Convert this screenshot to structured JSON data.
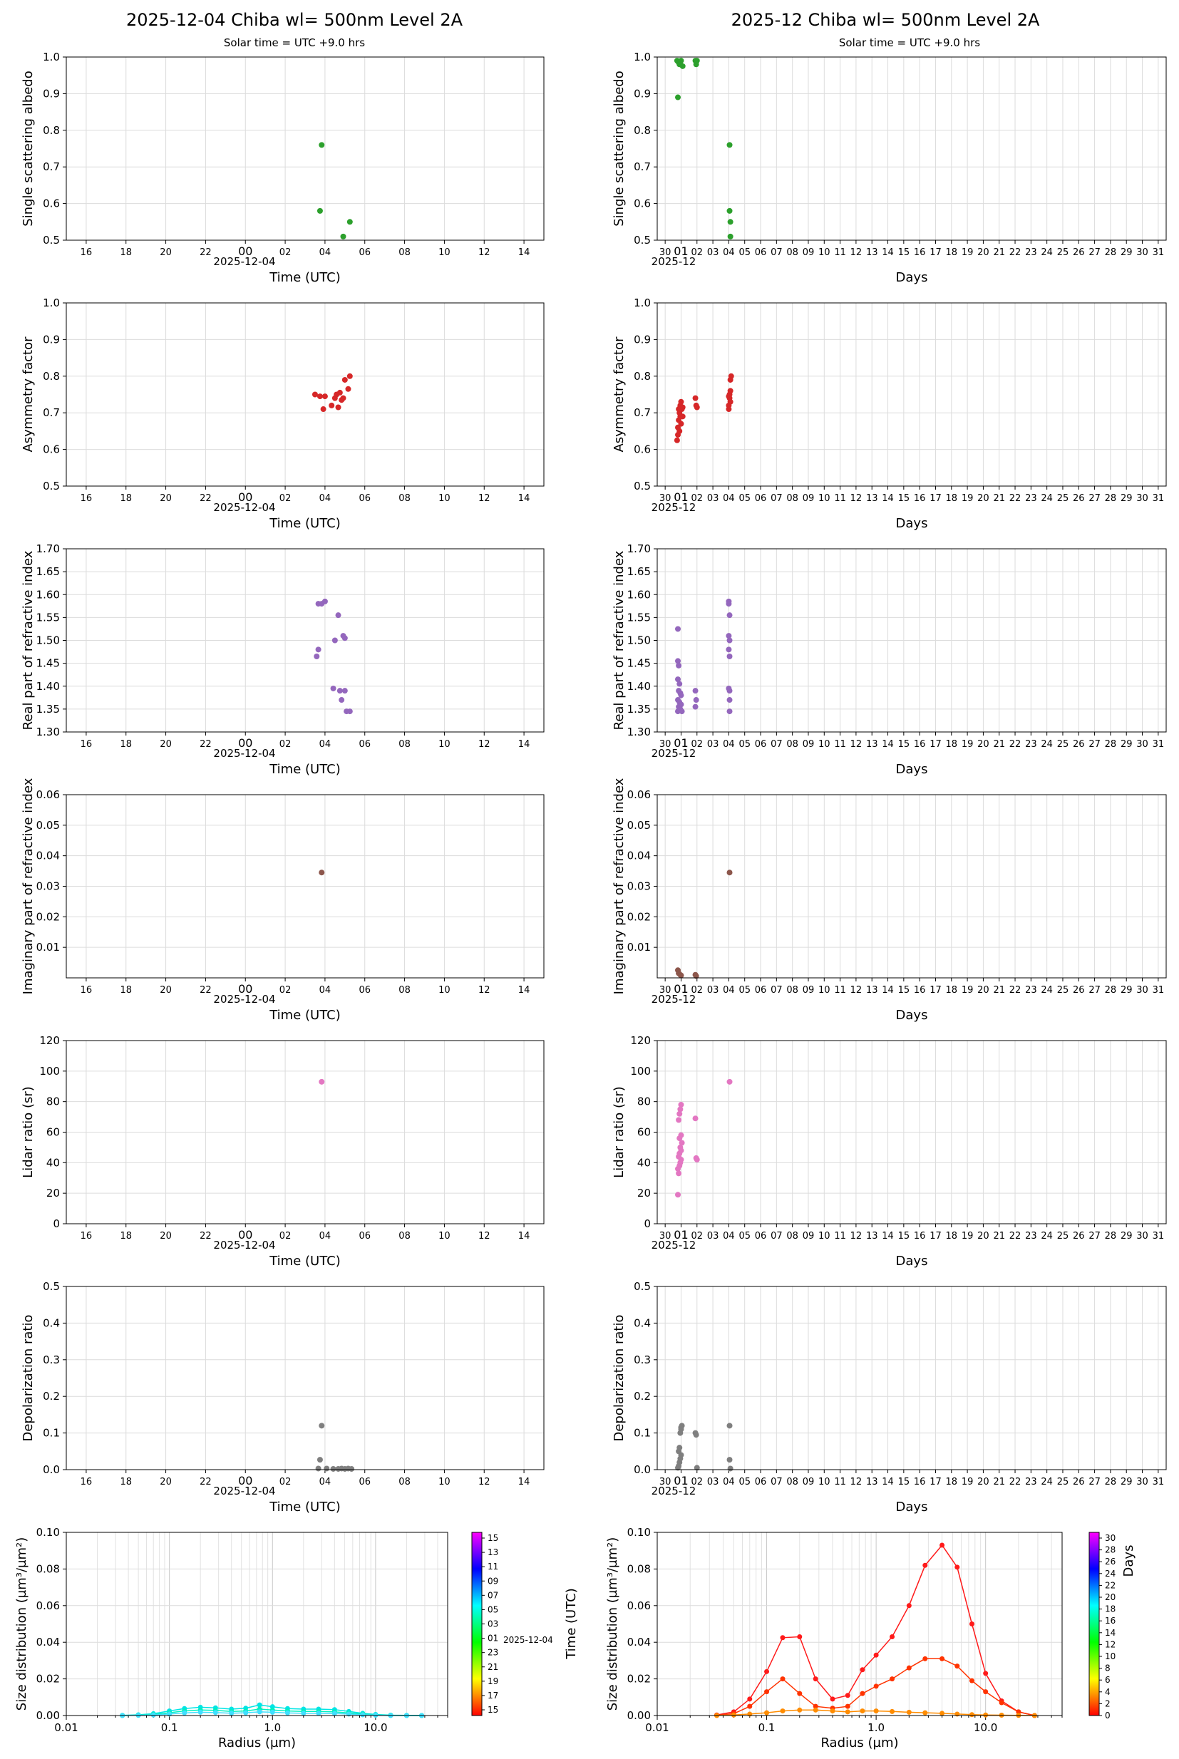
{
  "titles": {
    "left": "2025-12-04  Chiba  wl= 500nm  Level 2A",
    "right": "2025-12  Chiba  wl= 500nm  Level 2A",
    "left_sub": "Solar time = UTC +9.0 hrs",
    "right_sub": "Solar time = UTC +9.0 hrs"
  },
  "axes": {
    "time_xlabel": "Time (UTC)",
    "days_xlabel": "Days",
    "date_label": "2025-12-04",
    "month_label": "2025-12",
    "time_ticks": [
      "16",
      "18",
      "20",
      "22",
      "00",
      "02",
      "04",
      "06",
      "08",
      "10",
      "12",
      "14"
    ],
    "day_ticks": [
      "30",
      "01",
      "02",
      "03",
      "04",
      "05",
      "06",
      "07",
      "08",
      "09",
      "10",
      "11",
      "12",
      "13",
      "14",
      "15",
      "16",
      "17",
      "18",
      "19",
      "20",
      "21",
      "22",
      "23",
      "24",
      "25",
      "26",
      "27",
      "28",
      "29",
      "30",
      "31"
    ],
    "radius_xlabel": "Radius (µm)",
    "radius_ticks": [
      "0.01",
      "0.1",
      "1.0",
      "10.0"
    ],
    "sd_ylabel": "Size distribution (µm³/µm²)",
    "sd_yticks": [
      "0.00",
      "0.02",
      "0.04",
      "0.06",
      "0.08",
      "0.10"
    ],
    "cb_left_label": "Time (UTC)",
    "cb_left_ticks": [
      "15",
      "13",
      "11",
      "09",
      "07",
      "05",
      "03",
      "01",
      "23",
      "21",
      "19",
      "17",
      "15"
    ],
    "cb_left_date": "2025-12-04",
    "cb_right_label": "Days",
    "cb_right_ticks": [
      "30",
      "28",
      "26",
      "24",
      "22",
      "20",
      "18",
      "16",
      "14",
      "12",
      "10",
      "8",
      "6",
      "4",
      "2",
      "0"
    ]
  },
  "chart_data": [
    {
      "id": "ssa",
      "type": "scatter",
      "ylabel": "Single scattering albedo",
      "ylim": [
        0.5,
        1.0
      ],
      "yticks": [
        "0.5",
        "0.6",
        "0.7",
        "0.8",
        "0.9",
        "1.0"
      ],
      "color": "#2ca02c",
      "day_points": [
        [
          "03:50",
          0.76
        ],
        [
          "03:45",
          0.58
        ],
        [
          "05:15",
          0.55
        ],
        [
          "04:55",
          0.51
        ]
      ],
      "month_points": [
        [
          0.75,
          0.99
        ],
        [
          0.85,
          0.985
        ],
        [
          0.9,
          0.98
        ],
        [
          0.95,
          0.98
        ],
        [
          1.0,
          0.99
        ],
        [
          1.1,
          0.975
        ],
        [
          0.8,
          0.89
        ],
        [
          1.9,
          0.99
        ],
        [
          1.95,
          0.98
        ],
        [
          2.0,
          0.99
        ],
        [
          4.05,
          0.76
        ],
        [
          4.05,
          0.58
        ],
        [
          4.1,
          0.55
        ],
        [
          4.1,
          0.51
        ]
      ]
    },
    {
      "id": "asym",
      "type": "scatter",
      "ylabel": "Asymmetry factor",
      "ylim": [
        0.5,
        1.0
      ],
      "yticks": [
        "0.5",
        "0.6",
        "0.7",
        "0.8",
        "0.9",
        "1.0"
      ],
      "color": "#d62728",
      "day_points": [
        [
          "03:30",
          0.75
        ],
        [
          "03:45",
          0.745
        ],
        [
          "03:55",
          0.71
        ],
        [
          "04:00",
          0.745
        ],
        [
          "04:20",
          0.72
        ],
        [
          "04:30",
          0.74
        ],
        [
          "04:40",
          0.715
        ],
        [
          "04:45",
          0.755
        ],
        [
          "04:55",
          0.74
        ],
        [
          "05:00",
          0.79
        ],
        [
          "05:10",
          0.765
        ],
        [
          "05:15",
          0.8
        ],
        [
          "04:35",
          0.75
        ],
        [
          "04:50",
          0.735
        ]
      ],
      "month_points": [
        [
          0.75,
          0.625
        ],
        [
          0.8,
          0.66
        ],
        [
          0.85,
          0.68
        ],
        [
          0.9,
          0.7
        ],
        [
          0.95,
          0.72
        ],
        [
          1.0,
          0.73
        ],
        [
          1.05,
          0.71
        ],
        [
          1.1,
          0.69
        ],
        [
          0.8,
          0.64
        ],
        [
          0.9,
          0.65
        ],
        [
          1.0,
          0.67
        ],
        [
          1.1,
          0.715
        ],
        [
          0.95,
          0.69
        ],
        [
          0.85,
          0.71
        ],
        [
          1.9,
          0.74
        ],
        [
          1.95,
          0.72
        ],
        [
          2.0,
          0.715
        ],
        [
          4.0,
          0.71
        ],
        [
          4.0,
          0.72
        ],
        [
          4.05,
          0.74
        ],
        [
          4.05,
          0.75
        ],
        [
          4.1,
          0.76
        ],
        [
          4.1,
          0.79
        ],
        [
          4.15,
          0.8
        ],
        [
          4.0,
          0.745
        ],
        [
          4.1,
          0.73
        ]
      ]
    },
    {
      "id": "nr",
      "type": "scatter",
      "ylabel": "Real part of refractive index",
      "ylim": [
        1.3,
        1.7
      ],
      "yticks": [
        "1.30",
        "1.35",
        "1.40",
        "1.45",
        "1.50",
        "1.55",
        "1.60",
        "1.65",
        "1.70"
      ],
      "color": "#9467bd",
      "day_points": [
        [
          "03:40",
          1.58
        ],
        [
          "03:50",
          1.58
        ],
        [
          "04:00",
          1.585
        ],
        [
          "04:40",
          1.555
        ],
        [
          "04:30",
          1.5
        ],
        [
          "04:55",
          1.51
        ],
        [
          "05:00",
          1.505
        ],
        [
          "03:35",
          1.465
        ],
        [
          "03:40",
          1.48
        ],
        [
          "04:25",
          1.395
        ],
        [
          "04:45",
          1.39
        ],
        [
          "05:00",
          1.39
        ],
        [
          "04:50",
          1.37
        ],
        [
          "05:05",
          1.345
        ],
        [
          "05:15",
          1.345
        ]
      ],
      "month_points": [
        [
          0.8,
          1.525
        ],
        [
          0.8,
          1.455
        ],
        [
          0.85,
          1.445
        ],
        [
          0.8,
          1.415
        ],
        [
          0.9,
          1.405
        ],
        [
          0.85,
          1.39
        ],
        [
          0.95,
          1.385
        ],
        [
          1.0,
          1.38
        ],
        [
          0.8,
          1.37
        ],
        [
          0.9,
          1.365
        ],
        [
          1.0,
          1.36
        ],
        [
          0.85,
          1.355
        ],
        [
          0.95,
          1.35
        ],
        [
          1.05,
          1.345
        ],
        [
          0.8,
          1.345
        ],
        [
          1.9,
          1.39
        ],
        [
          1.95,
          1.37
        ],
        [
          1.9,
          1.355
        ],
        [
          4.0,
          1.585
        ],
        [
          4.0,
          1.58
        ],
        [
          4.05,
          1.555
        ],
        [
          4.0,
          1.51
        ],
        [
          4.05,
          1.5
        ],
        [
          4.0,
          1.48
        ],
        [
          4.05,
          1.465
        ],
        [
          4.0,
          1.395
        ],
        [
          4.05,
          1.39
        ],
        [
          4.05,
          1.37
        ],
        [
          4.05,
          1.345
        ]
      ]
    },
    {
      "id": "ni",
      "type": "scatter",
      "ylabel": "Imaginary part of refractive index",
      "ylim": [
        0.0,
        0.06
      ],
      "yticks": [
        "0.01",
        "0.02",
        "0.03",
        "0.04",
        "0.05",
        "0.06"
      ],
      "color": "#8c564b",
      "day_points": [
        [
          "03:50",
          0.0345
        ]
      ],
      "month_points": [
        [
          0.8,
          0.0025
        ],
        [
          0.85,
          0.0015
        ],
        [
          0.95,
          0.001
        ],
        [
          1.0,
          0.0008
        ],
        [
          1.9,
          0.001
        ],
        [
          1.95,
          0.0006
        ],
        [
          4.05,
          0.0345
        ]
      ]
    },
    {
      "id": "lr",
      "type": "scatter",
      "ylabel": "Lidar ratio (sr)",
      "ylim": [
        0,
        120
      ],
      "yticks": [
        "0",
        "20",
        "40",
        "60",
        "80",
        "100",
        "120"
      ],
      "color": "#e377c2",
      "day_points": [
        [
          "03:50",
          93
        ]
      ],
      "month_points": [
        [
          0.8,
          19
        ],
        [
          0.85,
          33
        ],
        [
          0.8,
          36
        ],
        [
          0.9,
          38
        ],
        [
          0.95,
          40
        ],
        [
          1.0,
          42
        ],
        [
          0.85,
          44
        ],
        [
          0.9,
          46
        ],
        [
          1.0,
          48
        ],
        [
          0.95,
          50
        ],
        [
          1.05,
          53
        ],
        [
          0.9,
          56
        ],
        [
          1.0,
          58
        ],
        [
          0.85,
          68
        ],
        [
          0.9,
          72
        ],
        [
          0.95,
          75
        ],
        [
          1.0,
          78
        ],
        [
          1.9,
          69
        ],
        [
          1.95,
          43
        ],
        [
          2.0,
          42
        ],
        [
          4.05,
          93
        ]
      ]
    },
    {
      "id": "dep",
      "type": "scatter",
      "ylabel": "Depolarization ratio",
      "ylim": [
        0.0,
        0.5
      ],
      "yticks": [
        "0.0",
        "0.1",
        "0.2",
        "0.3",
        "0.4",
        "0.5"
      ],
      "color": "#7f7f7f",
      "day_points": [
        [
          "03:50",
          0.12
        ],
        [
          "03:45",
          0.027
        ],
        [
          "03:40",
          0.003
        ],
        [
          "04:05",
          0.003
        ],
        [
          "04:25",
          0.002
        ],
        [
          "04:40",
          0.002
        ],
        [
          "04:50",
          0.003
        ],
        [
          "05:00",
          0.002
        ],
        [
          "05:10",
          0.003
        ],
        [
          "05:20",
          0.002
        ]
      ],
      "month_points": [
        [
          0.8,
          0.005
        ],
        [
          0.85,
          0.01
        ],
        [
          0.9,
          0.02
        ],
        [
          0.95,
          0.03
        ],
        [
          1.0,
          0.04
        ],
        [
          0.85,
          0.05
        ],
        [
          0.9,
          0.06
        ],
        [
          0.95,
          0.1
        ],
        [
          1.0,
          0.11
        ],
        [
          1.05,
          0.12
        ],
        [
          1.0,
          0.115
        ],
        [
          1.9,
          0.1
        ],
        [
          1.95,
          0.095
        ],
        [
          2.0,
          0.005
        ],
        [
          4.05,
          0.12
        ],
        [
          4.05,
          0.027
        ],
        [
          4.1,
          0.003
        ]
      ]
    },
    {
      "id": "sd_day",
      "type": "line",
      "xscale": "log",
      "x": [
        0.035,
        0.05,
        0.07,
        0.1,
        0.14,
        0.2,
        0.28,
        0.4,
        0.55,
        0.75,
        1.0,
        1.4,
        2.0,
        2.8,
        4.0,
        5.5,
        7.5,
        10,
        14,
        20,
        28
      ],
      "series": [
        {
          "values": [
            0.0001,
            0.0004,
            0.001,
            0.0025,
            0.0038,
            0.0045,
            0.0042,
            0.0035,
            0.004,
            0.0058,
            0.0048,
            0.0038,
            0.0035,
            0.0035,
            0.0032,
            0.0022,
            0.0012,
            0.0006,
            0.0002,
            0.0001,
            0.0
          ]
        },
        {
          "values": [
            0.0,
            0.0002,
            0.0006,
            0.0015,
            0.0025,
            0.003,
            0.0028,
            0.0022,
            0.0025,
            0.0035,
            0.003,
            0.0025,
            0.0022,
            0.0022,
            0.002,
            0.0014,
            0.0008,
            0.0003,
            0.0001,
            0.0,
            0.0
          ]
        },
        {
          "values": [
            0.0,
            0.0001,
            0.0003,
            0.0008,
            0.0014,
            0.0018,
            0.0016,
            0.0013,
            0.0015,
            0.002,
            0.0018,
            0.0014,
            0.0012,
            0.0012,
            0.0011,
            0.0008,
            0.0004,
            0.0002,
            0.0,
            0.0,
            0.0
          ]
        }
      ]
    },
    {
      "id": "sd_month",
      "type": "line",
      "xscale": "log",
      "x": [
        0.035,
        0.05,
        0.07,
        0.1,
        0.14,
        0.2,
        0.28,
        0.4,
        0.55,
        0.75,
        1.0,
        1.4,
        2.0,
        2.8,
        4.0,
        5.5,
        7.5,
        10,
        14,
        20,
        28
      ],
      "series": [
        {
          "color": "#ff1a1a",
          "values": [
            0.0003,
            0.002,
            0.009,
            0.024,
            0.0425,
            0.043,
            0.02,
            0.009,
            0.011,
            0.025,
            0.033,
            0.043,
            0.06,
            0.082,
            0.093,
            0.081,
            0.05,
            0.023,
            0.008,
            0.002,
            0.0
          ]
        },
        {
          "color": "#ff3300",
          "values": [
            0.0002,
            0.001,
            0.005,
            0.013,
            0.02,
            0.012,
            0.005,
            0.004,
            0.005,
            0.012,
            0.016,
            0.02,
            0.026,
            0.031,
            0.031,
            0.027,
            0.019,
            0.013,
            0.007,
            0.002,
            0.0
          ]
        },
        {
          "color": "#ff8c00",
          "values": [
            0.0,
            0.0003,
            0.0008,
            0.0015,
            0.0025,
            0.003,
            0.003,
            0.0025,
            0.002,
            0.0025,
            0.0025,
            0.0022,
            0.0018,
            0.0015,
            0.0012,
            0.0008,
            0.0005,
            0.0003,
            0.0002,
            0.0001,
            0.0
          ]
        }
      ]
    }
  ]
}
